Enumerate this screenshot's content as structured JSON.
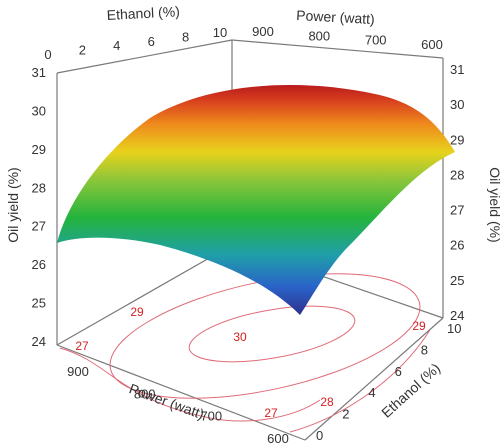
{
  "chart_data": {
    "type": "surface",
    "title": "",
    "colors": {
      "axes": "#7a7a7a",
      "contour": "#e06a78",
      "contour_label": "#d62020",
      "surface_low": "#2e2f8f",
      "surface_mid": "#25b43c",
      "surface_high": "#c0161d"
    },
    "x_axis": {
      "label": "Ethanol (%)",
      "range": [
        0,
        10
      ],
      "ticks": [
        "0",
        "2",
        "4",
        "6",
        "8",
        "10"
      ],
      "tick_values": [
        0,
        2,
        4,
        6,
        8,
        10
      ]
    },
    "y_axis": {
      "label": "Power (watt)",
      "range": [
        600,
        900
      ],
      "ticks": [
        "600",
        "700",
        "800",
        "900"
      ],
      "tick_values": [
        600,
        700,
        800,
        900
      ]
    },
    "z_axis": {
      "label": "Oil yield (%)",
      "range": [
        24,
        31
      ],
      "ticks": [
        "24",
        "25",
        "26",
        "27",
        "28",
        "29",
        "30",
        "31"
      ],
      "tick_values": [
        24,
        25,
        26,
        27,
        28,
        29,
        30,
        31
      ]
    },
    "surface_grid": {
      "ethanol": [
        0,
        5,
        10
      ],
      "power": [
        600,
        750,
        900
      ],
      "oil_yield": [
        [
          24.6,
          28.2,
          27.7
        ],
        [
          27.2,
          30.4,
          29.2
        ],
        [
          26.5,
          29.5,
          27.4
        ]
      ]
    },
    "contour_labels": [
      "27",
      "28",
      "29",
      "30",
      "29",
      "27"
    ],
    "contour_levels": [
      27,
      28,
      29,
      30
    ]
  }
}
